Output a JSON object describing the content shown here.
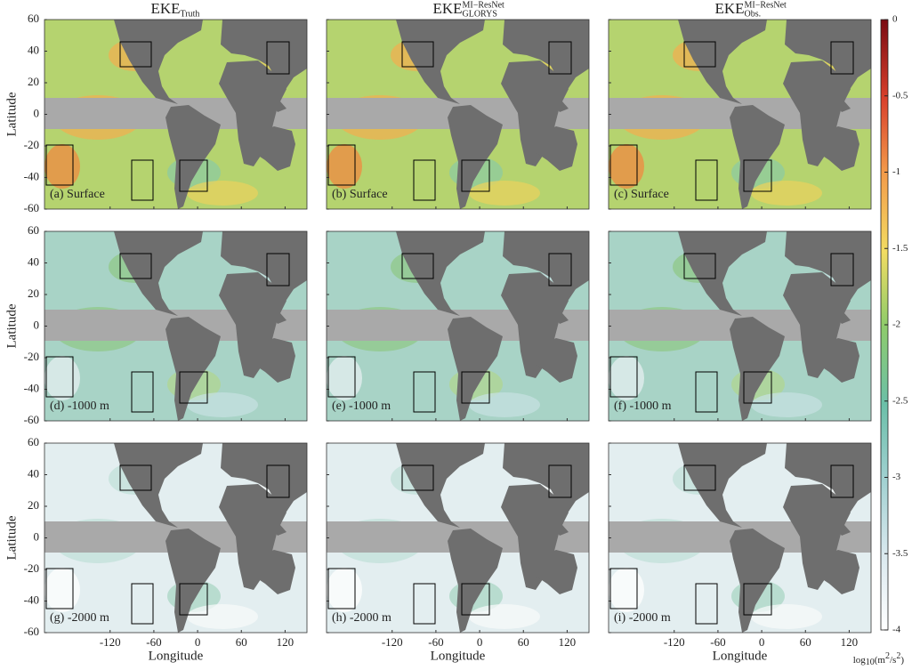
{
  "columns": [
    {
      "base": "EKE",
      "sub": "Truth"
    },
    {
      "base": "EKE",
      "sup": "MI−ResNet",
      "sub": "GLORYS"
    },
    {
      "base": "EKE",
      "sup": "MI−ResNet",
      "sub": "Obs."
    }
  ],
  "panels": [
    [
      "(a) Surface",
      "(b) Surface",
      "(c) Surface"
    ],
    [
      "(d) -1000 m",
      "(e) -1000 m",
      "(f) -1000 m"
    ],
    [
      "(g) -2000 m",
      "(h) -2000 m",
      "(i) -2000 m"
    ]
  ],
  "y_label": "Latitude",
  "x_label": "Longitude",
  "ylim": [
    -60,
    60
  ],
  "yticks": [
    60,
    40,
    20,
    0,
    -20,
    -40,
    -60
  ],
  "xlim": [
    -210,
    150
  ],
  "xticks": [
    -120,
    -60,
    0,
    60,
    120
  ],
  "colorbar": {
    "ylim": [
      -4,
      0
    ],
    "yticks": [
      0,
      -0.5,
      -1,
      -1.5,
      -2,
      -2.5,
      -3,
      -3.5,
      -4
    ],
    "label_parts": [
      "log",
      "10",
      "(m",
      "2",
      "/s",
      "2",
      ")"
    ]
  }
}
